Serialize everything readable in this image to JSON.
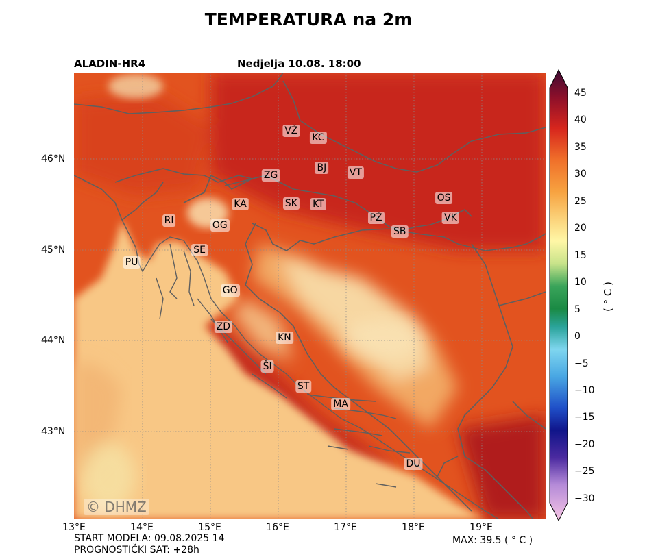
{
  "header": {
    "title": "TEMPERATURA na 2m",
    "model": "ALADIN-HR4",
    "valid_date": "Nedjelja 10.08. 18:00"
  },
  "map": {
    "watermark": "© DHMZ",
    "x_ticks": [
      "13°E",
      "14°E",
      "15°E",
      "16°E",
      "17°E",
      "18°E",
      "19°E"
    ],
    "y_ticks": [
      "46°N",
      "45°N",
      "44°N",
      "43°N"
    ],
    "cities": [
      {
        "code": "VŽ",
        "lon": 16.2,
        "lat": 46.31
      },
      {
        "code": "KC",
        "lon": 16.6,
        "lat": 46.23
      },
      {
        "code": "BJ",
        "lon": 16.65,
        "lat": 45.9
      },
      {
        "code": "VT",
        "lon": 17.15,
        "lat": 45.85
      },
      {
        "code": "ZG",
        "lon": 15.9,
        "lat": 45.82
      },
      {
        "code": "OS",
        "lon": 18.45,
        "lat": 45.57
      },
      {
        "code": "KA",
        "lon": 15.45,
        "lat": 45.5
      },
      {
        "code": "SK",
        "lon": 16.2,
        "lat": 45.51
      },
      {
        "code": "KT",
        "lon": 16.6,
        "lat": 45.5
      },
      {
        "code": "PŽ",
        "lon": 17.45,
        "lat": 45.35
      },
      {
        "code": "VK",
        "lon": 18.55,
        "lat": 45.35
      },
      {
        "code": "RI",
        "lon": 14.4,
        "lat": 45.32
      },
      {
        "code": "OG",
        "lon": 15.15,
        "lat": 45.27
      },
      {
        "code": "SB",
        "lon": 17.8,
        "lat": 45.2
      },
      {
        "code": "SE",
        "lon": 14.85,
        "lat": 45.0
      },
      {
        "code": "PU",
        "lon": 13.85,
        "lat": 44.86
      },
      {
        "code": "GO",
        "lon": 15.3,
        "lat": 44.55
      },
      {
        "code": "ZD",
        "lon": 15.2,
        "lat": 44.15
      },
      {
        "code": "KN",
        "lon": 16.1,
        "lat": 44.03
      },
      {
        "code": "ŠI",
        "lon": 15.85,
        "lat": 43.72
      },
      {
        "code": "ST",
        "lon": 16.38,
        "lat": 43.5
      },
      {
        "code": "MA",
        "lon": 16.93,
        "lat": 43.3
      },
      {
        "code": "DU",
        "lon": 18.0,
        "lat": 42.65
      }
    ]
  },
  "colorbar": {
    "ticks": [
      "45",
      "40",
      "35",
      "30",
      "25",
      "20",
      "15",
      "10",
      "5",
      "0",
      "−5",
      "−10",
      "−15",
      "−20",
      "−25",
      "−30"
    ],
    "unit": "( ° C )",
    "colors": {
      "low": "#f7c6e5",
      "blue": "#1f4fc8",
      "cyan": "#7fd6ef",
      "green": "#1a8a44",
      "yellow": "#fff7a6",
      "orange": "#f7a240",
      "red": "#d7261d",
      "max": "#3d0b33"
    }
  },
  "footer": {
    "start_model": "START MODELA: 09.08.2025 14",
    "forecast_hour": "PROGNOSTIČKI SAT: +28h",
    "max_value": "MAX: 39.5 ( ° C )"
  }
}
